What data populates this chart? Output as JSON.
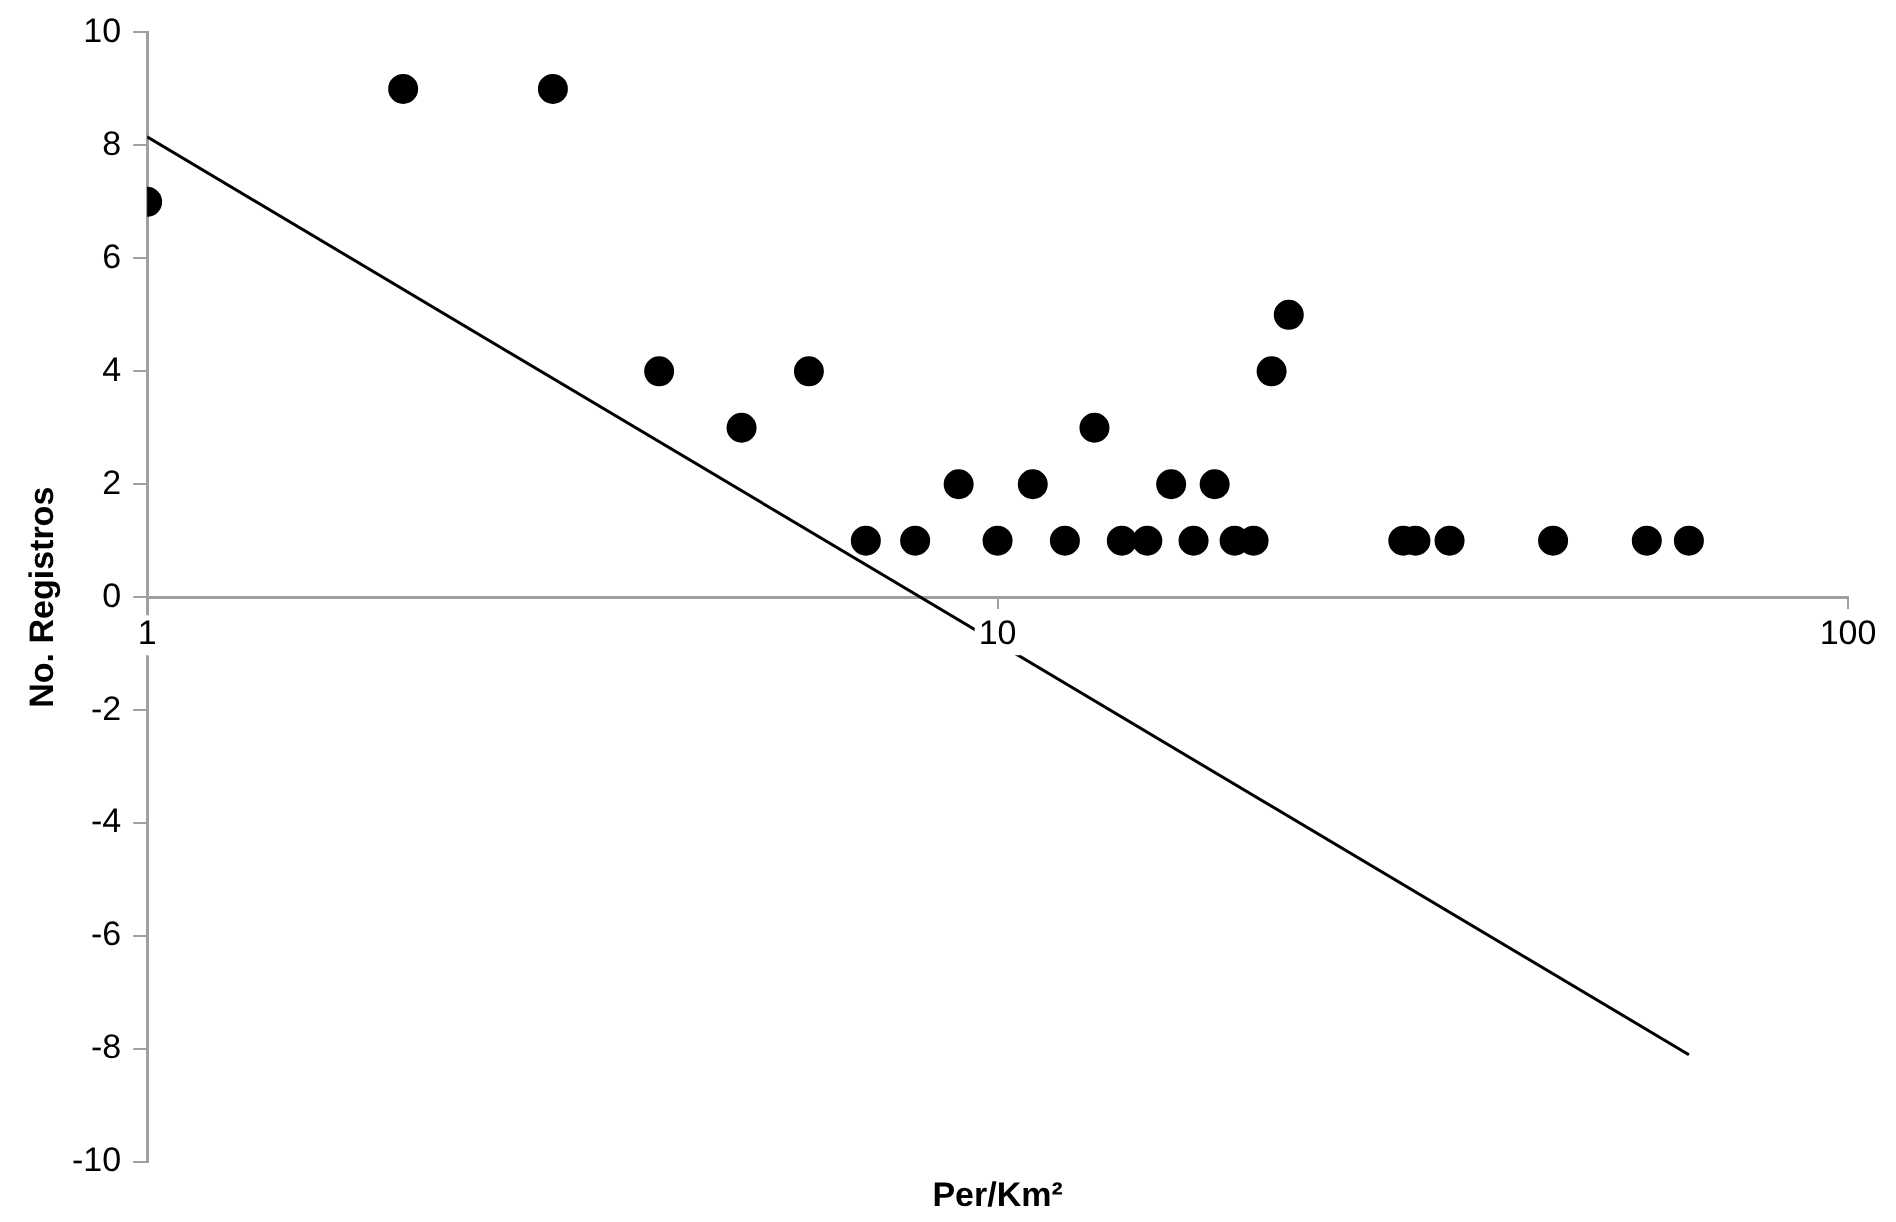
{
  "chart_data": {
    "type": "scatter",
    "xlabel": "Per/Km²",
    "ylabel": "No. Registros",
    "log": "x",
    "xlim": [
      1,
      100
    ],
    "xticks": [
      1,
      10,
      100
    ],
    "ylim": [
      -10,
      10
    ],
    "yticks": [
      -10,
      -8,
      -6,
      -4,
      -2,
      0,
      2,
      4,
      6,
      8,
      10
    ],
    "grid": false,
    "legend": false,
    "marker": "circle",
    "series": [
      {
        "color": "#000000",
        "x": [
          1,
          2,
          3,
          4,
          5,
          6,
          7,
          8,
          9,
          10,
          11,
          12,
          13,
          14,
          15,
          16,
          17,
          18,
          19,
          20,
          21,
          22,
          30,
          31,
          34,
          45,
          58,
          65
        ],
        "values": [
          7,
          9,
          9,
          4,
          3,
          4,
          1,
          1,
          2,
          1,
          2,
          1,
          3,
          1,
          1,
          2,
          1,
          2,
          1,
          1,
          4,
          5,
          1,
          1,
          1,
          1,
          1,
          1
        ]
      },
      {
        "type": "line",
        "color": "#000000",
        "marker": "none",
        "line_style": "solid",
        "x": [
          1,
          65
        ],
        "values": [
          8.15,
          -8.1
        ]
      }
    ]
  }
}
